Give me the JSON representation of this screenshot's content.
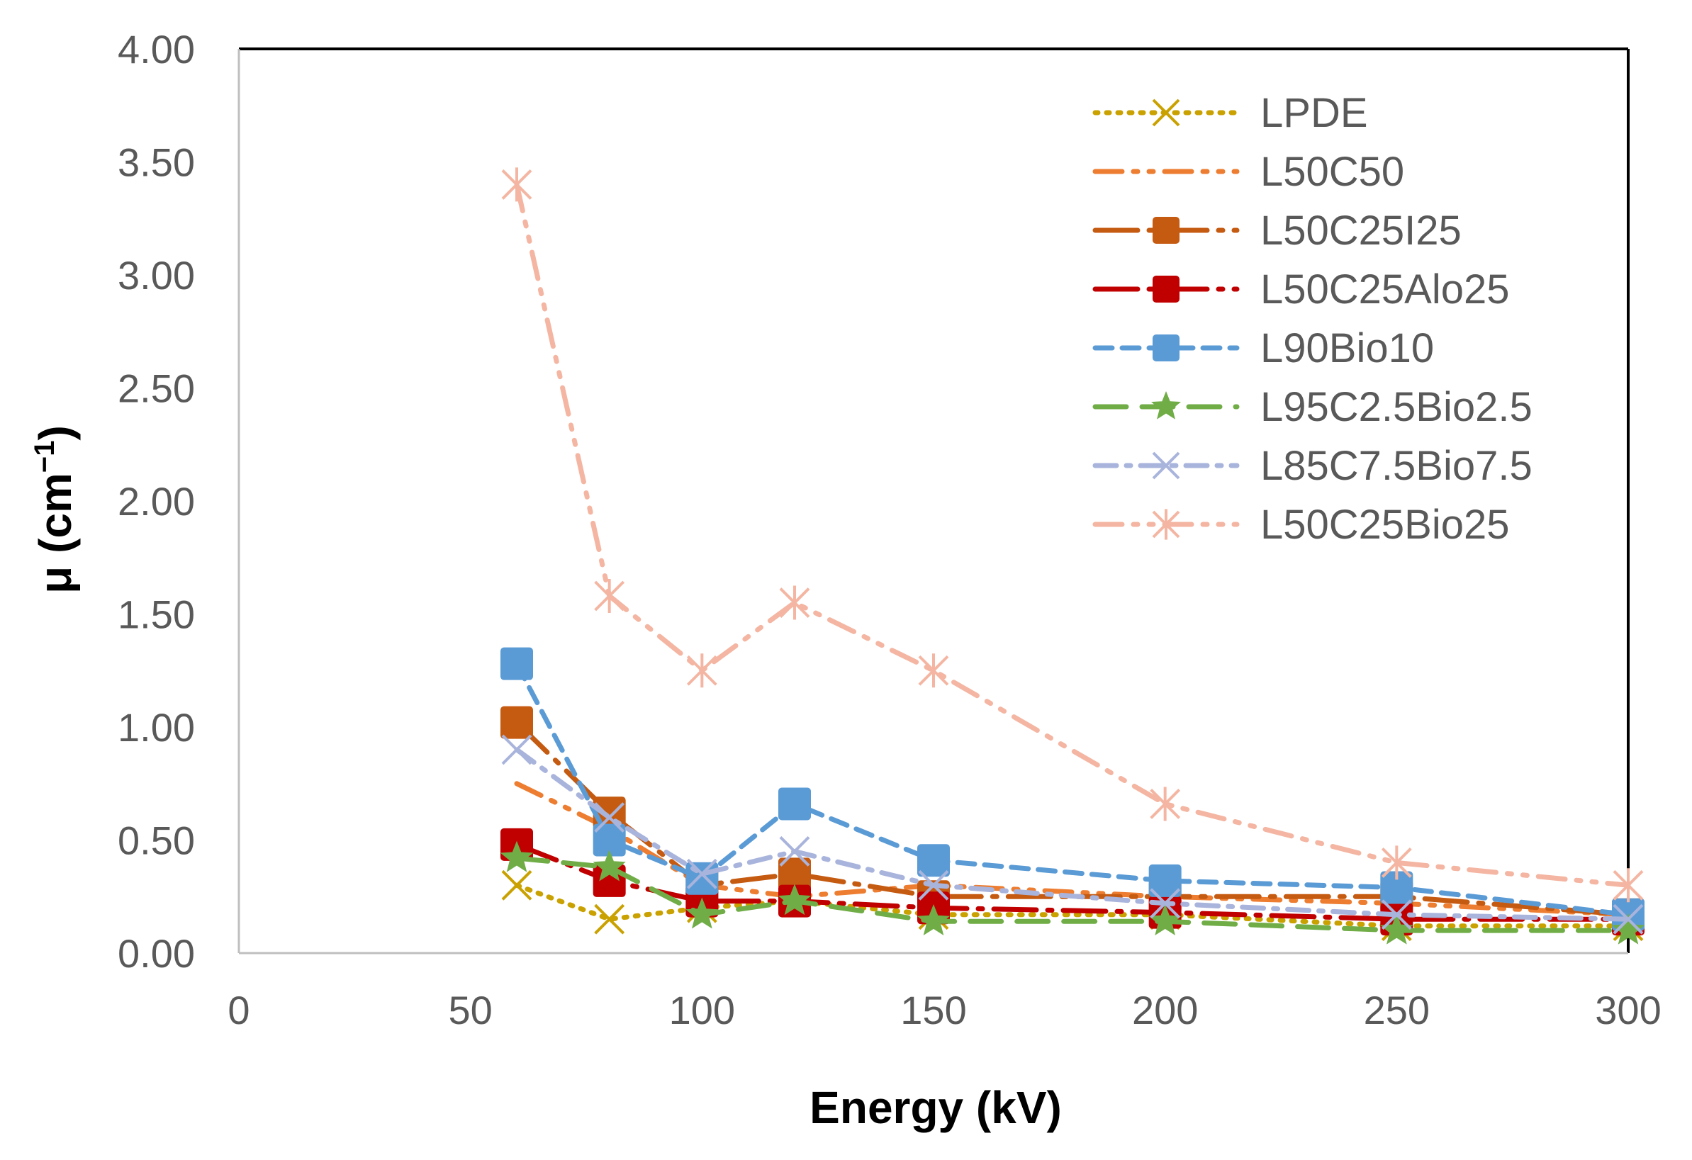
{
  "chart_data": {
    "type": "line",
    "title": "",
    "xlabel": "Energy (kV)",
    "ylabel_main": "μ (cm",
    "ylabel_sup": "−1",
    "ylabel_close": ")",
    "xlim": [
      0,
      300
    ],
    "ylim": [
      0,
      4
    ],
    "x_ticks": [
      0,
      50,
      100,
      150,
      200,
      250,
      300
    ],
    "x_tick_labels": [
      "0",
      "50",
      "100",
      "150",
      "200",
      "250",
      "300"
    ],
    "y_ticks": [
      0,
      0.5,
      1,
      1.5,
      2,
      2.5,
      3,
      3.5,
      4
    ],
    "y_tick_labels": [
      "0.00",
      "0.50",
      "1.00",
      "1.50",
      "2.00",
      "2.50",
      "3.00",
      "3.50",
      "4.00"
    ],
    "grid": false,
    "legend_position": "top-right",
    "x": [
      60,
      80,
      100,
      120,
      150,
      200,
      250,
      300
    ],
    "series": [
      {
        "name": "LPDE",
        "color": "#C9A100",
        "dash": "dotted",
        "marker": "x",
        "values": [
          0.3,
          0.15,
          0.2,
          0.23,
          0.17,
          0.17,
          0.12,
          0.12
        ]
      },
      {
        "name": "L50C50",
        "color": "#ED7D31",
        "dash": "dash-dot-dot",
        "marker": "none",
        "values": [
          0.75,
          0.55,
          0.3,
          0.25,
          0.3,
          0.25,
          0.22,
          0.17
        ]
      },
      {
        "name": "L50C25I25",
        "color": "#C55A11",
        "dash": "solid-dot",
        "marker": "square",
        "values": [
          1.02,
          0.62,
          0.3,
          0.35,
          0.25,
          0.25,
          0.25,
          0.17
        ]
      },
      {
        "name": "L50C25Alo25",
        "color": "#C00000",
        "dash": "solid-dot",
        "marker": "square",
        "values": [
          0.48,
          0.32,
          0.23,
          0.23,
          0.2,
          0.18,
          0.15,
          0.15
        ]
      },
      {
        "name": "L90Bio10",
        "color": "#5B9BD5",
        "dash": "dashed",
        "marker": "square",
        "values": [
          1.28,
          0.5,
          0.33,
          0.66,
          0.41,
          0.32,
          0.29,
          0.17
        ]
      },
      {
        "name": "L95C2.5Bio2.5",
        "color": "#70AD47",
        "dash": "long-dash",
        "marker": "triangle",
        "values": [
          0.42,
          0.38,
          0.17,
          0.23,
          0.14,
          0.14,
          0.1,
          0.1
        ]
      },
      {
        "name": "L85C7.5Bio7.5",
        "color": "#A9B4DC",
        "dash": "dash-dot",
        "marker": "x",
        "values": [
          0.9,
          0.6,
          0.35,
          0.45,
          0.3,
          0.22,
          0.17,
          0.15
        ]
      },
      {
        "name": "L50C25Bio25",
        "color": "#F4B6A2",
        "dash": "dash-dot-dot",
        "marker": "asterisk",
        "values": [
          3.4,
          1.58,
          1.25,
          1.55,
          1.25,
          0.66,
          0.4,
          0.3
        ]
      }
    ]
  }
}
